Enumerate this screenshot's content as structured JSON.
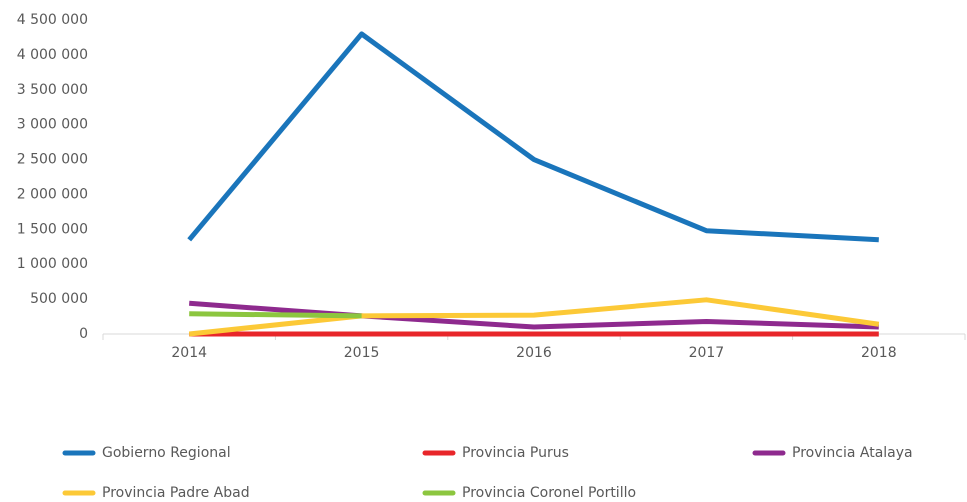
{
  "chart_data": {
    "type": "line",
    "categories": [
      "2014",
      "2015",
      "2016",
      "2017",
      "2018"
    ],
    "series": [
      {
        "name": "Gobierno Regional",
        "color": "#1a75bb",
        "values": [
          1350000,
          4300000,
          2500000,
          1480000,
          1350000
        ]
      },
      {
        "name": "Provincia Purus",
        "color": "#e8262a",
        "values": [
          0,
          0,
          0,
          0,
          0
        ]
      },
      {
        "name": "Provincia Atalaya",
        "color": "#8e2a8e",
        "values": [
          440000,
          260000,
          100000,
          180000,
          100000
        ]
      },
      {
        "name": "Provincia Padre Abad",
        "color": "#fcc937",
        "values": [
          0,
          260000,
          270000,
          490000,
          140000
        ]
      },
      {
        "name": "Provincia Coronel Portillo",
        "color": "#8cc63f",
        "values": [
          290000,
          260000,
          null,
          null,
          null
        ]
      }
    ],
    "ylim": [
      0,
      4500000
    ],
    "yticks": [
      0,
      {
        "value": 500000,
        "label": "500 000"
      },
      {
        "value": 1000000,
        "label": "1 000 000"
      },
      {
        "value": 1500000,
        "label": "1 500 000"
      },
      {
        "value": 2000000,
        "label": "2 000 000"
      },
      {
        "value": 2500000,
        "label": "2 500 000"
      },
      {
        "value": 3000000,
        "label": "3 000 000"
      },
      {
        "value": 3500000,
        "label": "3 500 000"
      },
      {
        "value": 4000000,
        "label": "4 000 000"
      },
      {
        "value": 4500000,
        "label": "4 500 000"
      }
    ],
    "grid": false,
    "legend": "bottom"
  }
}
